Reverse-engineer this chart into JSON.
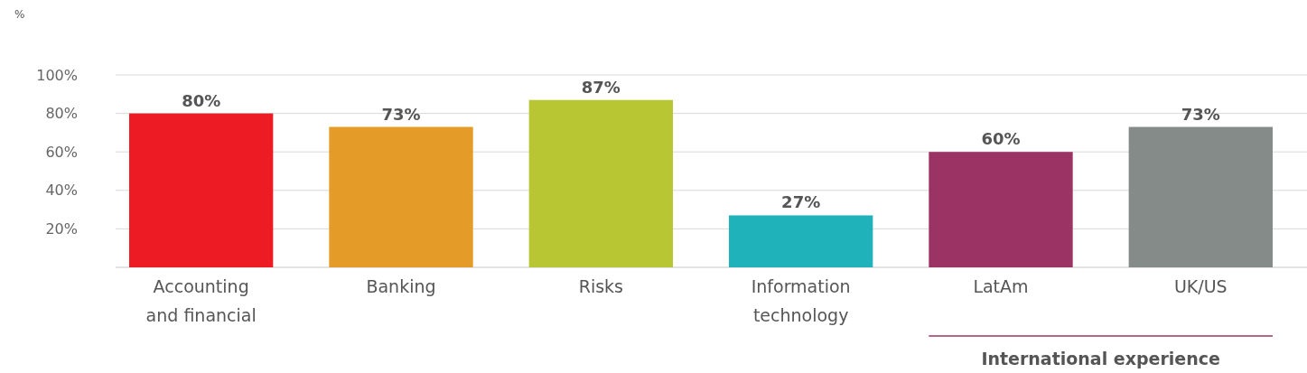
{
  "chart_data": {
    "type": "bar",
    "ylabel": "%",
    "categories": [
      "Accounting\nand financial",
      "Banking",
      "Risks",
      "Information\ntechnology",
      "LatAm",
      "UK/US"
    ],
    "values": [
      80,
      73,
      87,
      27,
      60,
      73
    ],
    "colors": [
      "#ed1c24",
      "#e59b27",
      "#b8c633",
      "#20b2bb",
      "#9b3465",
      "#858b89"
    ],
    "ylim": [
      0,
      100
    ],
    "yticks": [
      {
        "value": 20,
        "label": "20%"
      },
      {
        "value": 40,
        "label": "40%"
      },
      {
        "value": 60,
        "label": "60%"
      },
      {
        "value": 80,
        "label": "80%"
      },
      {
        "value": 100,
        "label": "100%"
      }
    ],
    "grid": "y",
    "value_labels": [
      "80%",
      "73%",
      "87%",
      "27%",
      "60%",
      "73%"
    ],
    "annotations": [
      "International experience"
    ]
  }
}
